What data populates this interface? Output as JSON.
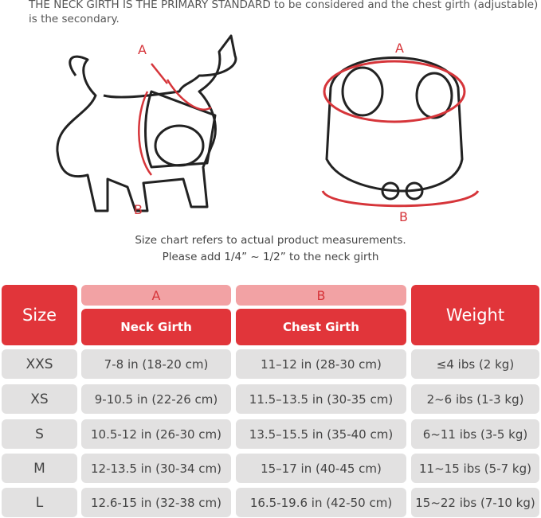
{
  "intro_text": "THE NECK GIRTH IS THE PRIMARY STANDARD to be considered and the chest girth (adjustable) is the secondary.",
  "diagram_labels": {
    "dog_a": "A",
    "dog_b": "B",
    "harness_a": "A",
    "harness_b": "B"
  },
  "caption_lines": [
    "Size chart refers to actual product measurements.",
    "Please add 1/4” ~ 1/2” to the neck girth"
  ],
  "colors": {
    "accent": "#e1353a",
    "accent_light": "#f2a2a4",
    "row_bg": "#e2e1e1"
  },
  "table": {
    "headers": {
      "size": "Size",
      "a": "A",
      "neck": "Neck Girth",
      "b": "B",
      "chest": "Chest Girth",
      "weight": "Weight"
    },
    "rows": [
      {
        "size": "XXS",
        "neck": "7-8 in (18-20 cm)",
        "chest": "11–12 in (28-30 cm)",
        "weight": "≤4 ibs (2 kg)"
      },
      {
        "size": "XS",
        "neck": "9-10.5 in (22-26 cm)",
        "chest": "11.5–13.5 in (30-35 cm)",
        "weight": "2~6 ibs (1-3 kg)"
      },
      {
        "size": "S",
        "neck": "10.5-12 in (26-30 cm)",
        "chest": "13.5–15.5 in (35-40 cm)",
        "weight": "6~11 ibs (3-5 kg)"
      },
      {
        "size": "M",
        "neck": "12-13.5 in (30-34 cm)",
        "chest": "15–17 in (40-45 cm)",
        "weight": "11~15 ibs (5-7 kg)"
      },
      {
        "size": "L",
        "neck": "12.6-15 in (32-38 cm)",
        "chest": "16.5-19.6 in (42-50 cm)",
        "weight": "15~22 ibs (7-10 kg)"
      }
    ]
  }
}
